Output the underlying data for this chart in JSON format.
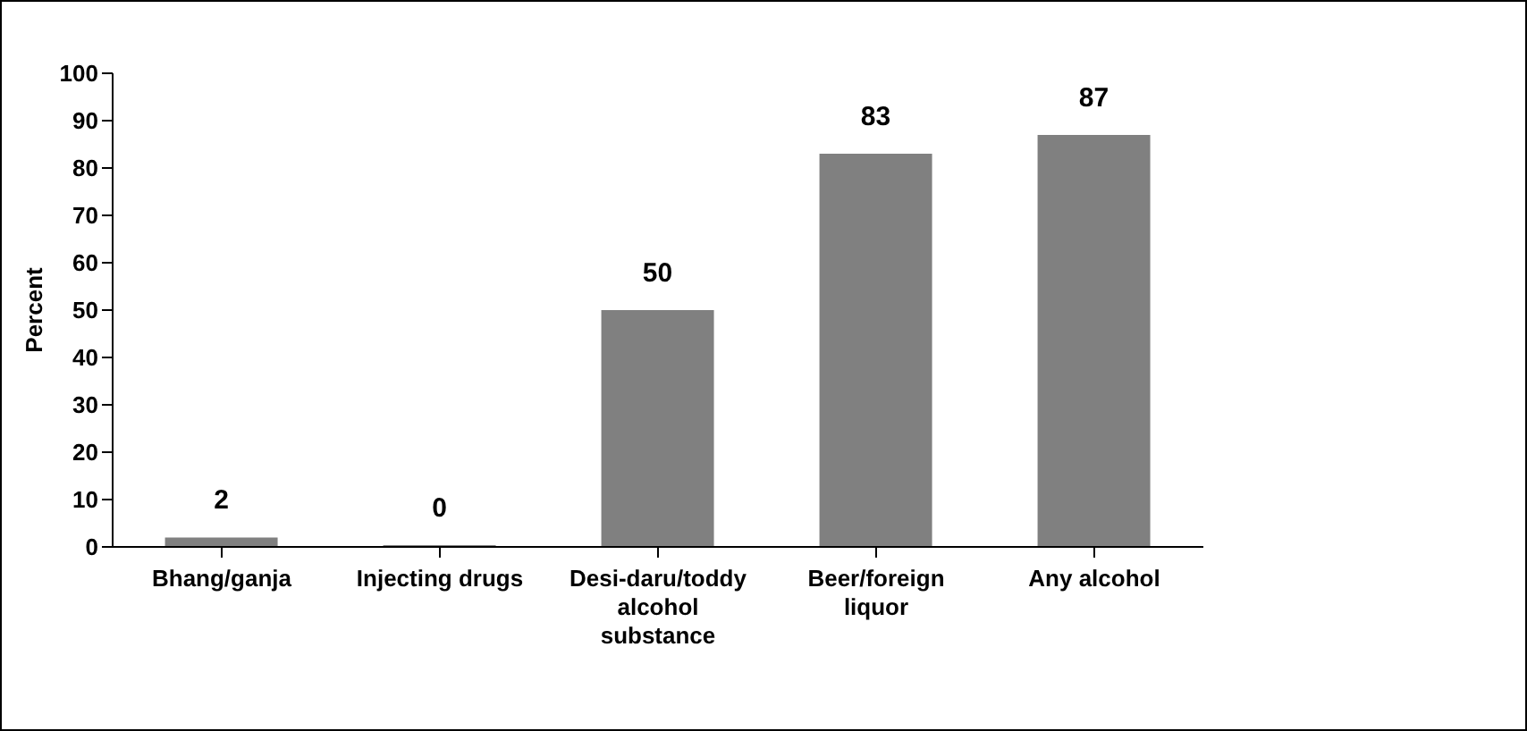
{
  "chart_data": {
    "type": "bar",
    "ylabel": "Percent",
    "categories": [
      "Bhang/ganja",
      "Injecting drugs",
      "Desi-daru/toddy alcohol substance",
      "Beer/foreign liquor",
      "Any alcohol"
    ],
    "values": [
      2,
      0,
      50,
      83,
      87
    ],
    "color": "#808080",
    "ylim": [
      0,
      100
    ],
    "yticks": [
      0,
      10,
      20,
      30,
      40,
      50,
      60,
      70,
      80,
      90,
      100
    ],
    "grid": false,
    "data_labels": true
  }
}
